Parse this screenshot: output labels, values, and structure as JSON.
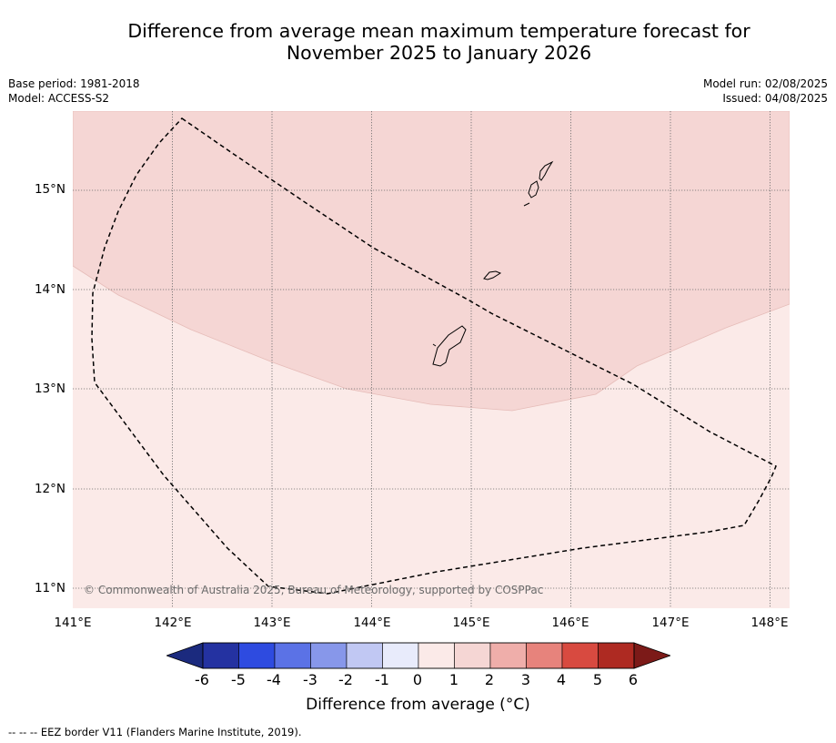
{
  "title_line1": "Difference from average mean maximum temperature forecast for",
  "title_line2": "November 2025 to January 2026",
  "meta_left": {
    "base_period": "Base period: 1981-2018",
    "model": "Model: ACCESS-S2"
  },
  "meta_right": {
    "model_run": "Model run: 02/08/2025",
    "issued": "Issued: 04/08/2025"
  },
  "map": {
    "lon_range": [
      141,
      148.2
    ],
    "lat_range": [
      10.8,
      15.8
    ],
    "lon_ticks": [
      "141°E",
      "142°E",
      "143°E",
      "144°E",
      "145°E",
      "146°E",
      "147°E",
      "148°E"
    ],
    "lat_ticks": [
      "11°N",
      "12°N",
      "13°N",
      "14°N",
      "15°N"
    ],
    "anomaly_zones": [
      {
        "category": "1 to 2 °C",
        "color": "#f5d6d4",
        "location": "northern part of map"
      },
      {
        "category": "0 to 1 °C",
        "color": "#fbeae8",
        "location": "southern part of map"
      }
    ],
    "eez_border_style": "dashed black",
    "islands": [
      "Guam",
      "Rota",
      "Tinian",
      "Saipan"
    ],
    "copyright": "© Commonwealth of Australia 2025, Bureau of Meteorology, supported by COSPPac"
  },
  "colorbar": {
    "ticks": [
      "-6",
      "-5",
      "-4",
      "-3",
      "-2",
      "-1",
      "0",
      "1",
      "2",
      "3",
      "4",
      "5",
      "6"
    ],
    "colors": [
      "#2432a1",
      "#2e4be0",
      "#5b72e6",
      "#8797ea",
      "#c1c8f3",
      "#e8ebfb",
      "#fbeae8",
      "#f5d6d4",
      "#efaeaa",
      "#e7837c",
      "#d84a40",
      "#ae2a22"
    ],
    "min_extend_color": "#1b2a7e",
    "max_extend_color": "#7c1a18",
    "label": "Difference from average (°C)",
    "label_text": "Difference from average (",
    "label_unit": "°C)"
  },
  "footer": "--  --  -- EEZ border V11 (Flanders Marine Institute, 2019)."
}
